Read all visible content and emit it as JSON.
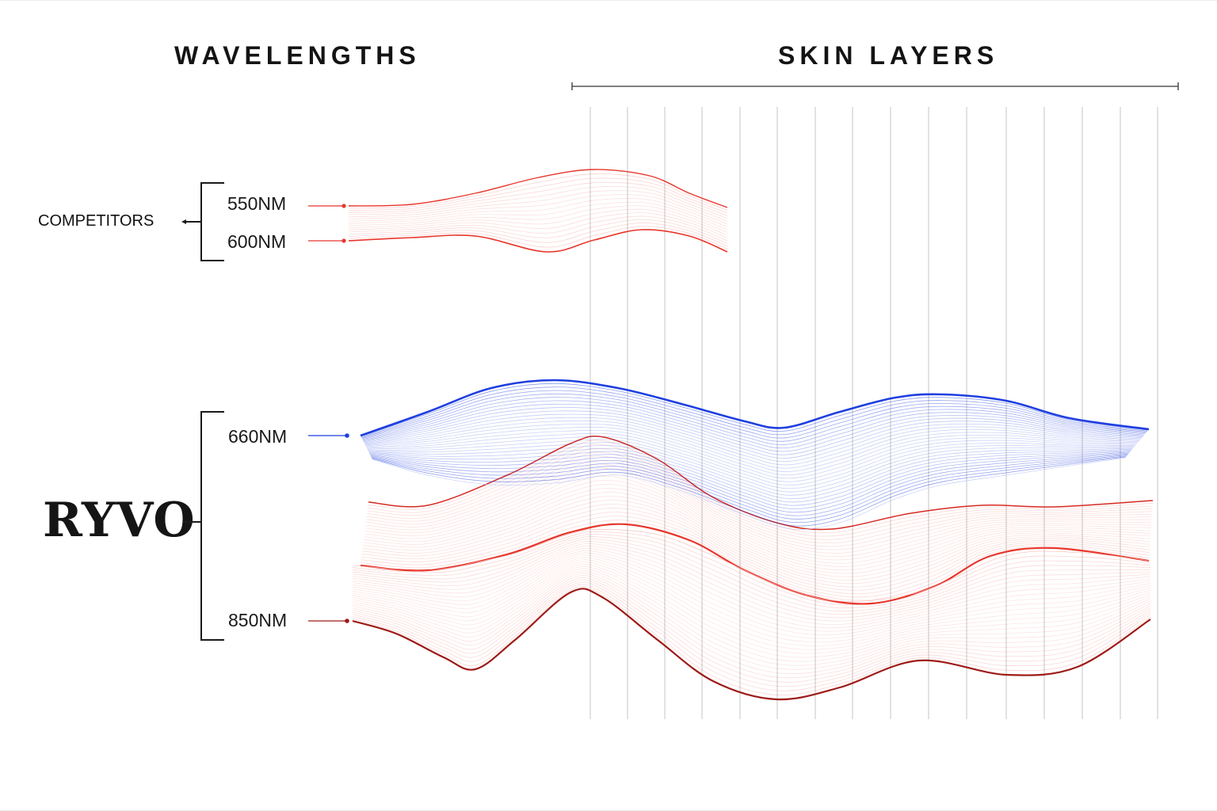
{
  "headers": {
    "wavelengths": "WAVELENGTHS",
    "skin_layers": "SKIN LAYERS"
  },
  "groups": {
    "competitors": "COMPETITORS",
    "brand": "RYVO"
  },
  "wavelength_labels": {
    "w550": "550NM",
    "w600": "600NM",
    "w660": "660NM",
    "w850": "850NM"
  },
  "colors": {
    "red": "#e8362c",
    "dark_red": "#9e1b18",
    "blue": "#1f3fe0",
    "grid": "#c9c9c9",
    "text": "#111111"
  }
}
